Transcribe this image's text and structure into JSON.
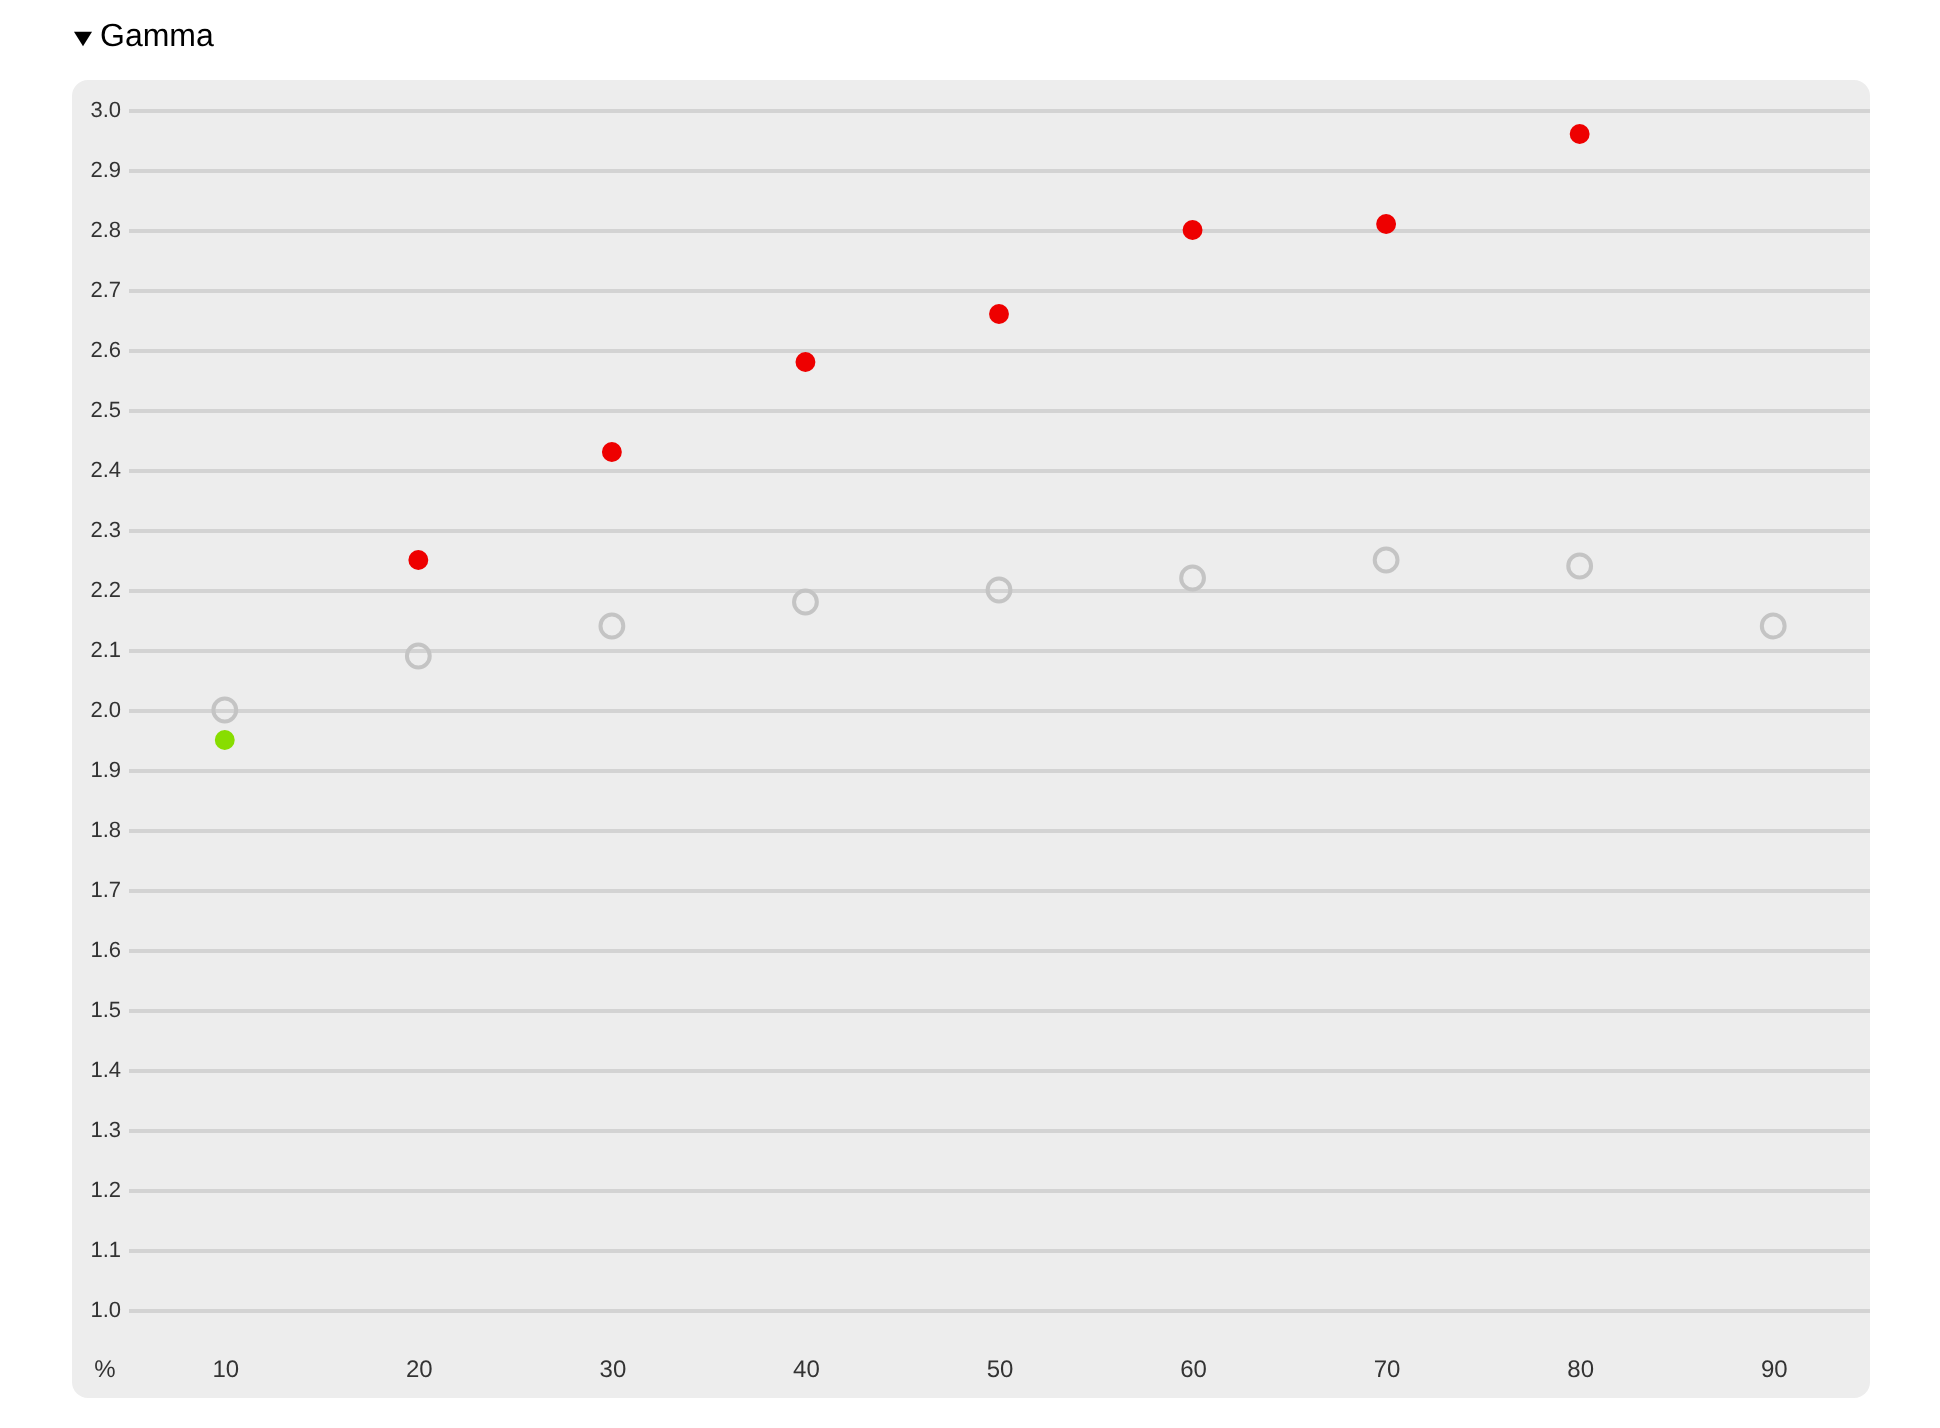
{
  "chart_data": {
    "type": "scatter",
    "title": "Gamma",
    "xlabel": "%",
    "categories": [
      "10",
      "20",
      "30",
      "40",
      "50",
      "60",
      "70",
      "80",
      "90"
    ],
    "series": [
      {
        "colors": [
          "#88dd00",
          "#ee0000",
          "#ee0000",
          "#ee0000",
          "#ee0000",
          "#ee0000",
          "#ee0000",
          "#ee0000",
          null
        ],
        "values": [
          1.95,
          2.25,
          2.43,
          2.58,
          2.66,
          2.8,
          2.81,
          2.96,
          null
        ]
      },
      {
        "color": "#c4c4c4",
        "values": [
          2.0,
          2.09,
          2.14,
          2.18,
          2.2,
          2.22,
          2.25,
          2.24,
          2.14
        ]
      }
    ],
    "ylim": [
      1.0,
      3.0
    ],
    "yticks": [
      {
        "value": 1.0,
        "label": "1.0"
      },
      1.1,
      1.2,
      1.3,
      1.4,
      1.5,
      1.6,
      1.7,
      1.8,
      1.9,
      {
        "value": 2.0,
        "label": "2.0"
      },
      2.1,
      2.2,
      2.3,
      2.4,
      2.5,
      2.6,
      2.7,
      2.8,
      2.9,
      {
        "value": 3.0,
        "label": "3.0"
      }
    ],
    "grid": "y",
    "marker": "circle"
  }
}
